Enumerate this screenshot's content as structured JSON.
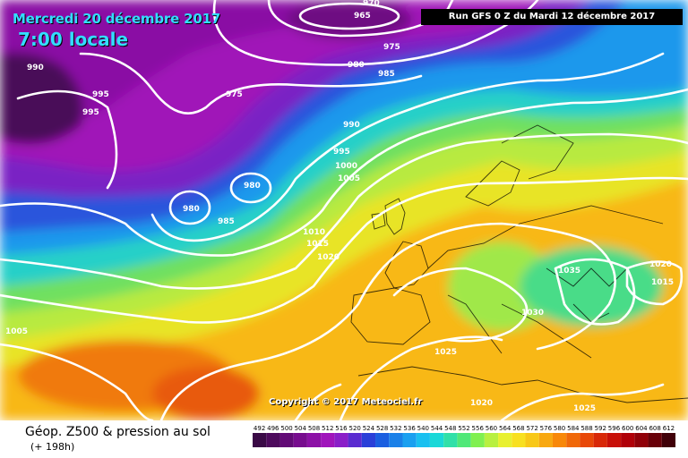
{
  "header": {
    "date": "Mercredi 20 décembre 2017",
    "local_time": "7:00 locale",
    "run": "Run GFS 0 Z du Mardi 12 décembre 2017"
  },
  "footer": {
    "title": "Géop. Z500 & pression au sol",
    "lead_time": "(+ 198h)",
    "copyright": "Copyright © 2017 Meteociel.fr"
  },
  "legend": {
    "values": [
      "492",
      "496",
      "500",
      "504",
      "508",
      "512",
      "516",
      "520",
      "524",
      "528",
      "532",
      "536",
      "540",
      "544",
      "548",
      "552",
      "556",
      "560",
      "564",
      "568",
      "572",
      "576",
      "580",
      "584",
      "588",
      "592",
      "596",
      "600",
      "604",
      "608",
      "612"
    ],
    "colors": [
      "#3a0a46",
      "#4d0a5c",
      "#620a76",
      "#770c8e",
      "#8c10a6",
      "#a014bb",
      "#8a1ec8",
      "#5a2bd0",
      "#2a3fd8",
      "#1a5ee0",
      "#1a80e8",
      "#1aa0f0",
      "#1ac0f0",
      "#1ad8d8",
      "#30e0a8",
      "#50e878",
      "#80f050",
      "#b8f040",
      "#e8f030",
      "#f8e020",
      "#f8c818",
      "#f8a810",
      "#f88808",
      "#f06808",
      "#e84808",
      "#d82808",
      "#c81008",
      "#b00008",
      "#900008",
      "#680008",
      "#400008"
    ]
  },
  "isobars": [
    "970",
    "965",
    "975",
    "990",
    "980",
    "985",
    "995",
    "975",
    "995",
    "990",
    "995",
    "1000",
    "1005",
    "980",
    "980",
    "985",
    "1010",
    "1015",
    "1020",
    "1035",
    "1020",
    "1015",
    "1030",
    "1005",
    "1025",
    "1020",
    "1025"
  ]
}
